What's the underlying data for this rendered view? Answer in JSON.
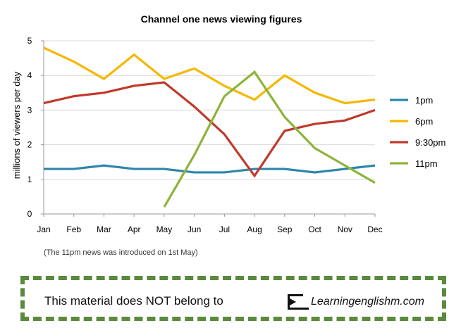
{
  "chart_data": {
    "type": "line",
    "title": "Channel one news viewing figures",
    "xlabel": "",
    "ylabel": "millions of viewers per day",
    "ylim": [
      0,
      5
    ],
    "yticks": [
      0,
      1,
      2,
      3,
      4,
      5
    ],
    "grid": true,
    "legend_position": "right",
    "categories": [
      "Jan",
      "Feb",
      "Mar",
      "Apr",
      "May",
      "Jun",
      "Jul",
      "Aug",
      "Sep",
      "Oct",
      "Nov",
      "Dec"
    ],
    "series": [
      {
        "name": "1pm",
        "color": "#2e86ab",
        "values": [
          1.3,
          1.3,
          1.4,
          1.3,
          1.3,
          1.2,
          1.2,
          1.3,
          1.3,
          1.2,
          1.3,
          1.4
        ]
      },
      {
        "name": "6pm",
        "color": "#f5b800",
        "values": [
          4.8,
          4.4,
          3.9,
          4.6,
          3.9,
          4.2,
          3.7,
          3.3,
          4.0,
          3.5,
          3.2,
          3.3
        ]
      },
      {
        "name": "9:30pm",
        "color": "#c0392b",
        "values": [
          3.2,
          3.4,
          3.5,
          3.7,
          3.8,
          3.1,
          2.3,
          1.1,
          2.4,
          2.6,
          2.7,
          3.0
        ]
      },
      {
        "name": "11pm",
        "color": "#8db43a",
        "values": [
          null,
          null,
          null,
          null,
          0.2,
          1.7,
          3.4,
          4.1,
          2.8,
          1.9,
          1.4,
          0.9
        ]
      }
    ],
    "annotation": "(The 11pm news was introduced on 1st May)"
  },
  "banner": {
    "text": "This material does NOT belong to",
    "brand": "Learningenglishm.com",
    "border_color": "#5a8a3c"
  }
}
